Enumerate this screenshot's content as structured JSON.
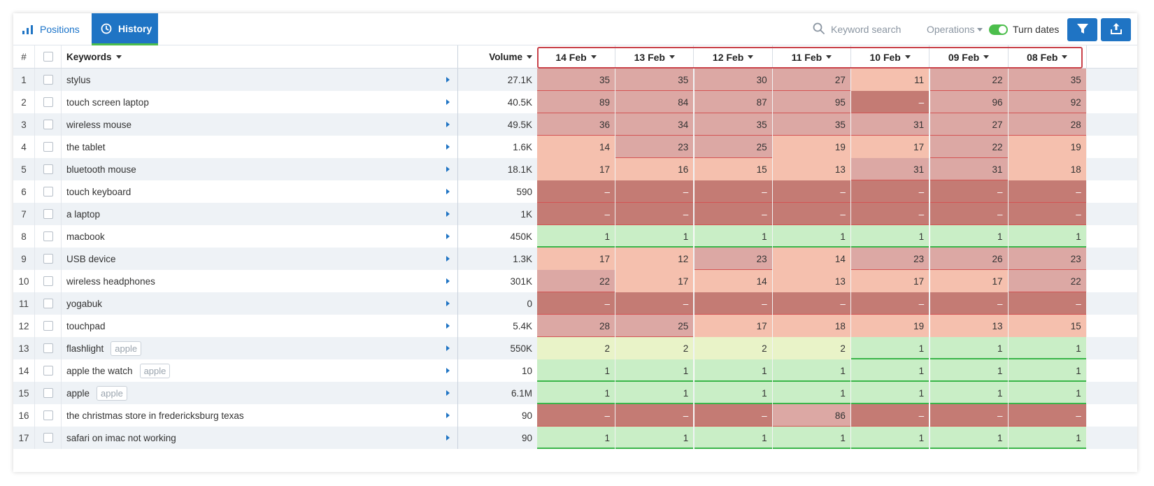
{
  "toolbar": {
    "tabs": [
      {
        "label": "Positions",
        "icon": "bar-chart-icon",
        "active": false
      },
      {
        "label": "History",
        "icon": "clock-icon",
        "active": true
      }
    ],
    "search_placeholder": "Keyword search",
    "operations_label": "Operations",
    "turn_dates_label": "Turn dates",
    "turn_dates_on": true,
    "filter_icon": "filter-icon",
    "export_icon": "export-icon"
  },
  "columns": {
    "num": "#",
    "keywords": "Keywords",
    "volume": "Volume",
    "dates": [
      "14 Feb",
      "13 Feb",
      "12 Feb",
      "11 Feb",
      "10 Feb",
      "09 Feb",
      "08 Feb"
    ]
  },
  "colors": {
    "accent": "#1f74c4",
    "green_toggle": "#4cbe4c",
    "highlight_border": "#c9424a",
    "heat_not_ranked": "#c47b74",
    "heat_high": "#dca8a4",
    "heat_mid": "#f5c0ae",
    "heat_top3": "#e9f3c8",
    "heat_top1": "#c9eec6"
  },
  "rows": [
    {
      "num": "1",
      "keyword": "stylus",
      "tag": "",
      "volume": "27.1K",
      "positions": [
        "35",
        "35",
        "30",
        "27",
        "11",
        "22",
        "35"
      ]
    },
    {
      "num": "2",
      "keyword": "touch screen laptop",
      "tag": "",
      "volume": "40.5K",
      "positions": [
        "89",
        "84",
        "87",
        "95",
        "–",
        "96",
        "92"
      ]
    },
    {
      "num": "3",
      "keyword": "wireless mouse",
      "tag": "",
      "volume": "49.5K",
      "positions": [
        "36",
        "34",
        "35",
        "35",
        "31",
        "27",
        "28"
      ]
    },
    {
      "num": "4",
      "keyword": "the tablet",
      "tag": "",
      "volume": "1.6K",
      "positions": [
        "14",
        "23",
        "25",
        "19",
        "17",
        "22",
        "19"
      ]
    },
    {
      "num": "5",
      "keyword": "bluetooth mouse",
      "tag": "",
      "volume": "18.1K",
      "positions": [
        "17",
        "16",
        "15",
        "13",
        "31",
        "31",
        "18"
      ]
    },
    {
      "num": "6",
      "keyword": "touch keyboard",
      "tag": "",
      "volume": "590",
      "positions": [
        "–",
        "–",
        "–",
        "–",
        "–",
        "–",
        "–"
      ]
    },
    {
      "num": "7",
      "keyword": "a laptop",
      "tag": "",
      "volume": "1K",
      "positions": [
        "–",
        "–",
        "–",
        "–",
        "–",
        "–",
        "–"
      ]
    },
    {
      "num": "8",
      "keyword": "macbook",
      "tag": "",
      "volume": "450K",
      "positions": [
        "1",
        "1",
        "1",
        "1",
        "1",
        "1",
        "1"
      ]
    },
    {
      "num": "9",
      "keyword": "USB device",
      "tag": "",
      "volume": "1.3K",
      "positions": [
        "17",
        "12",
        "23",
        "14",
        "23",
        "26",
        "23"
      ]
    },
    {
      "num": "10",
      "keyword": "wireless headphones",
      "tag": "",
      "volume": "301K",
      "positions": [
        "22",
        "17",
        "14",
        "13",
        "17",
        "17",
        "22"
      ]
    },
    {
      "num": "11",
      "keyword": "yogabuk",
      "tag": "",
      "volume": "0",
      "positions": [
        "–",
        "–",
        "–",
        "–",
        "–",
        "–",
        "–"
      ]
    },
    {
      "num": "12",
      "keyword": "touchpad",
      "tag": "",
      "volume": "5.4K",
      "positions": [
        "28",
        "25",
        "17",
        "18",
        "19",
        "13",
        "15"
      ]
    },
    {
      "num": "13",
      "keyword": "flashlight",
      "tag": "apple",
      "volume": "550K",
      "positions": [
        "2",
        "2",
        "2",
        "2",
        "1",
        "1",
        "1"
      ]
    },
    {
      "num": "14",
      "keyword": "apple the watch",
      "tag": "apple",
      "volume": "10",
      "positions": [
        "1",
        "1",
        "1",
        "1",
        "1",
        "1",
        "1"
      ]
    },
    {
      "num": "15",
      "keyword": "apple",
      "tag": "apple",
      "volume": "6.1M",
      "positions": [
        "1",
        "1",
        "1",
        "1",
        "1",
        "1",
        "1"
      ]
    },
    {
      "num": "16",
      "keyword": "the christmas store in fredericksburg texas",
      "tag": "",
      "volume": "90",
      "positions": [
        "–",
        "–",
        "–",
        "86",
        "–",
        "–",
        "–"
      ]
    },
    {
      "num": "17",
      "keyword": "safari on imac not working",
      "tag": "",
      "volume": "90",
      "positions": [
        "1",
        "1",
        "1",
        "1",
        "1",
        "1",
        "1"
      ]
    }
  ]
}
